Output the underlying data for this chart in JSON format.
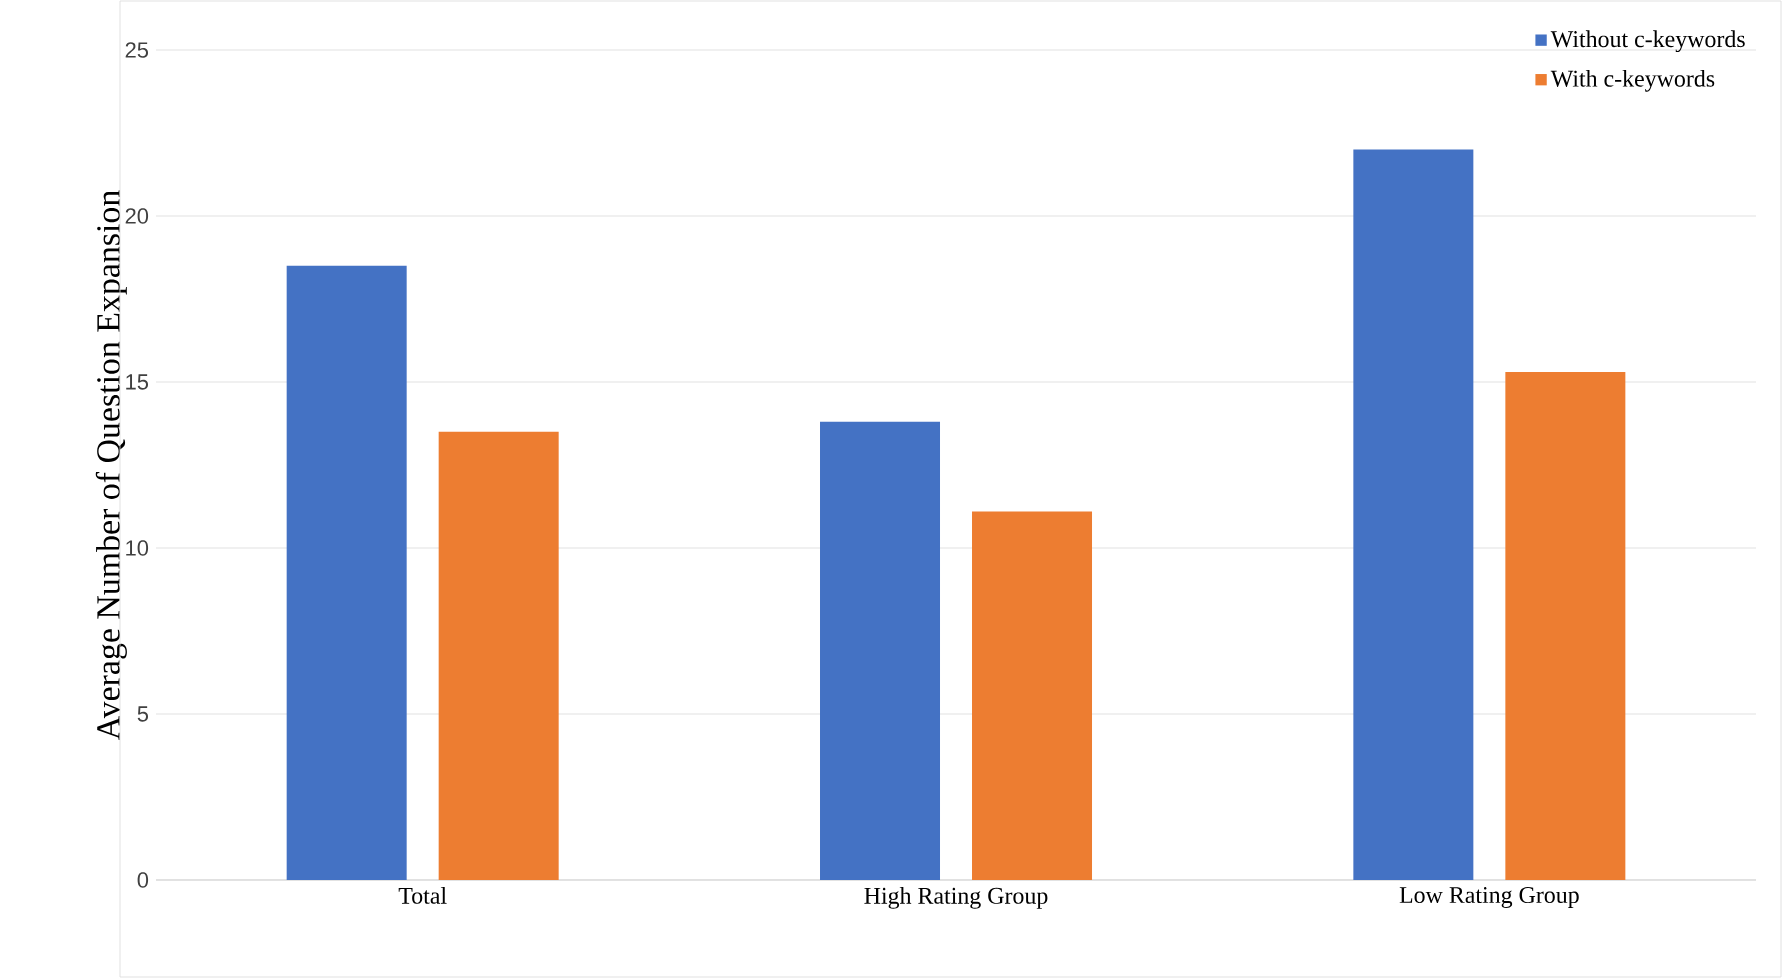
{
  "chart_data": {
    "type": "bar",
    "ylabel": "Average Number of Question Expansion",
    "categories": [
      "Total",
      "High Rating Group",
      "Low Rating Group"
    ],
    "series": [
      {
        "name": "Without c-keywords",
        "color": "#4472c4",
        "values": [
          18.5,
          13.8,
          22.0
        ]
      },
      {
        "name": "With c-keywords",
        "color": "#ed7d31",
        "values": [
          13.5,
          11.1,
          15.3
        ]
      }
    ],
    "ylim": [
      0,
      25
    ],
    "yticks": [
      0,
      5,
      10,
      15,
      20,
      25
    ],
    "grid": "y",
    "legend": "top right"
  }
}
